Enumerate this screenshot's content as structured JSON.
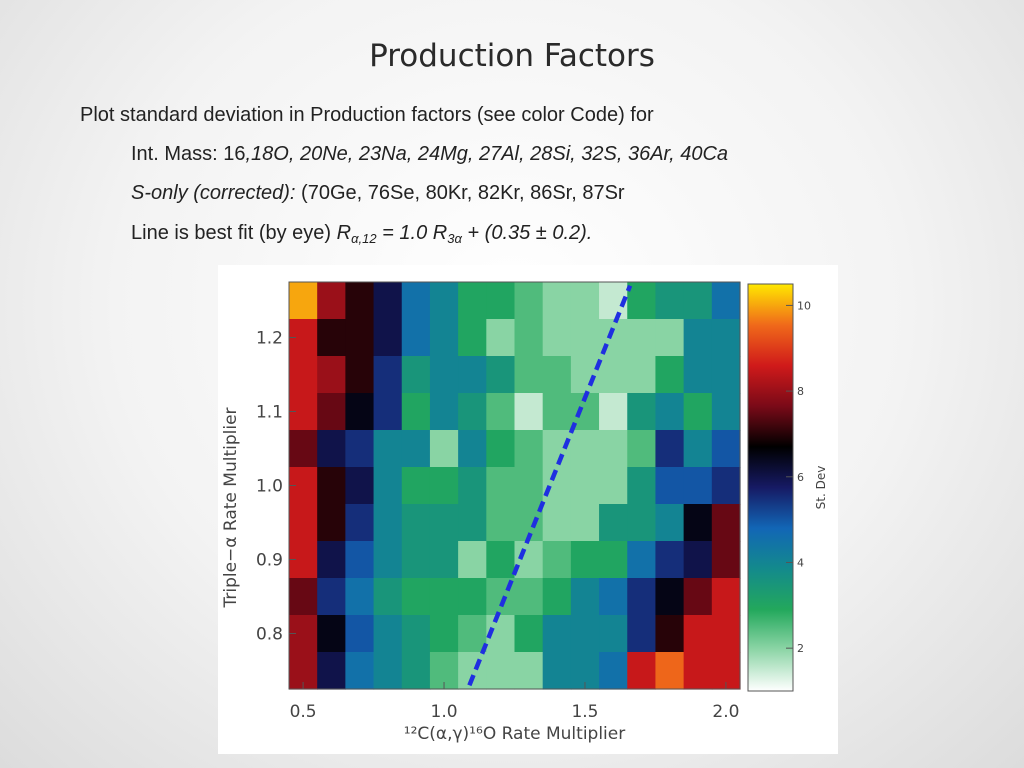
{
  "slide": {
    "title": "Production Factors",
    "line1": "Plot standard deviation in Production factors (see color Code) for",
    "line2_plain": "Int. Mass:  16",
    "line2_italic": ",18O, 20Ne, 23Na, 24Mg, 27Al, 28Si, 32S, 36Ar, 40Ca",
    "line3_italic": "S-only (corrected):",
    "line3_plain": " (70Ge, 76Se, 80Kr, 82Kr, 86Sr, 87Sr",
    "line4_plain": "Line is best fit (by eye) ",
    "line4_R1": "R",
    "line4_sub1": "α,12",
    "line4_eq": " = 1.0 R",
    "line4_sub2": "3α",
    "line4_rest": " + (0.35 ± 0.2)."
  },
  "chart_data": {
    "type": "heatmap",
    "xlabel": "¹²C(α,γ)¹⁶O Rate Multiplier",
    "ylabel": "Triple−α Rate Multiplier",
    "x": [
      0.5,
      0.6,
      0.7,
      0.8,
      0.9,
      1.0,
      1.1,
      1.2,
      1.3,
      1.4,
      1.5,
      1.6,
      1.7,
      1.8,
      1.9,
      2.0
    ],
    "y": [
      0.75,
      0.8,
      0.85,
      0.9,
      0.95,
      1.0,
      1.05,
      1.1,
      1.15,
      1.2,
      1.25
    ],
    "xlim": [
      0.45,
      2.05
    ],
    "ylim": [
      0.725,
      1.275
    ],
    "xticks": [
      0.5,
      1.0,
      1.5,
      2.0
    ],
    "xtick_labels": [
      "0.5",
      "1.0",
      "1.5",
      "2.0"
    ],
    "yticks": [
      0.8,
      0.9,
      1.0,
      1.1,
      1.2
    ],
    "ytick_labels": [
      "0.8",
      "0.9",
      "1.0",
      "1.1",
      "1.2"
    ],
    "z_rows_top_to_bottom": [
      [
        10,
        8,
        7,
        6,
        4.5,
        4,
        3,
        3,
        2.5,
        2,
        2,
        1.5,
        3,
        3.5,
        3.5,
        4.5
      ],
      [
        8.5,
        7,
        7,
        6,
        4.5,
        4,
        3,
        2,
        2.5,
        2,
        2,
        2,
        2,
        2,
        4,
        4
      ],
      [
        8.5,
        8,
        7,
        5.5,
        3.5,
        4,
        4,
        3.5,
        2.5,
        2.5,
        2,
        2,
        2,
        3,
        4,
        4
      ],
      [
        8.5,
        7.5,
        6.5,
        5.5,
        3,
        4,
        3.5,
        2.5,
        1.5,
        2.5,
        2.5,
        1.5,
        3.5,
        4,
        3,
        4
      ],
      [
        7.5,
        6,
        5.5,
        4,
        4,
        2,
        4,
        3,
        2.5,
        2,
        2,
        2,
        2.5,
        5.5,
        4,
        5
      ],
      [
        8.5,
        7,
        6,
        4,
        3,
        3,
        3.5,
        2.5,
        2.5,
        2,
        2,
        2,
        3.5,
        5,
        5,
        5.5
      ],
      [
        8.5,
        7,
        5.5,
        4,
        3.5,
        3.5,
        3.5,
        2.5,
        2.5,
        2,
        2,
        3.5,
        3.5,
        4,
        6.5,
        7.5
      ],
      [
        8.5,
        6,
        5,
        4,
        3.5,
        3.5,
        2,
        3,
        2,
        2.5,
        3,
        3,
        4.5,
        5.5,
        6,
        7.5
      ],
      [
        7.5,
        5.5,
        4.5,
        3.5,
        3,
        3,
        3,
        2.5,
        2.5,
        3,
        4,
        4.5,
        5.5,
        6.5,
        7.5,
        8.5
      ],
      [
        8,
        6.5,
        5,
        4,
        3.5,
        3,
        2.5,
        2,
        3,
        4,
        4,
        4,
        5.5,
        7,
        8.5,
        8.5
      ],
      [
        8,
        6,
        4.5,
        4,
        3.5,
        2.5,
        2,
        2,
        2,
        4,
        4,
        4.5,
        8.5,
        9.5,
        8.5,
        8.5
      ]
    ],
    "colorbar": {
      "label": "St. Dev",
      "range": [
        1,
        10.5
      ],
      "ticks": [
        2,
        4,
        6,
        8,
        10
      ],
      "tick_labels": [
        "2",
        "4",
        "6",
        "8",
        "10"
      ]
    },
    "fit_line": {
      "description": "Line is best fit (by eye)",
      "style": "dashed",
      "color": "#1f2fe0",
      "points": [
        [
          1.09,
          0.73
        ],
        [
          1.66,
          1.27
        ]
      ]
    },
    "colors": {
      "colormap_stops": [
        "#ffffff",
        "#8fd6a8",
        "#23a85c",
        "#138a8c",
        "#1266b6",
        "#161a64",
        "#000000",
        "#7a0a18",
        "#d01a1a",
        "#f06a1a",
        "#ffe800"
      ]
    }
  }
}
